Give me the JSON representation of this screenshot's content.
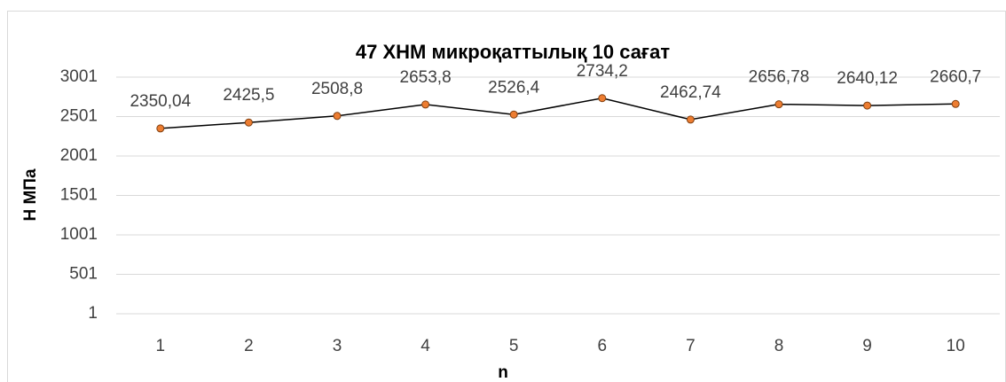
{
  "chart_data": {
    "type": "line",
    "title": "47 ХНМ микроқаттылық 10 сағат",
    "xlabel": "n",
    "ylabel": "Н МПа",
    "categories": [
      "1",
      "2",
      "3",
      "4",
      "5",
      "6",
      "7",
      "8",
      "9",
      "10"
    ],
    "series": [
      {
        "name": "Н МПа",
        "color": "#ed7d31",
        "line_color": "#000000",
        "values": [
          2350.04,
          2425.5,
          2508.8,
          2653.8,
          2526.4,
          2734.2,
          2462.74,
          2656.78,
          2640.12,
          2660.7
        ],
        "value_labels": [
          "2350,04",
          "2425,5",
          "2508,8",
          "2653,8",
          "2526,4",
          "2734,2",
          "2462,74",
          "2656,78",
          "2640,12",
          "2660,7"
        ]
      }
    ],
    "ylim": [
      1,
      3001
    ],
    "yticks": [
      1,
      501,
      1001,
      1501,
      2001,
      2501,
      3001
    ],
    "grid": true
  }
}
